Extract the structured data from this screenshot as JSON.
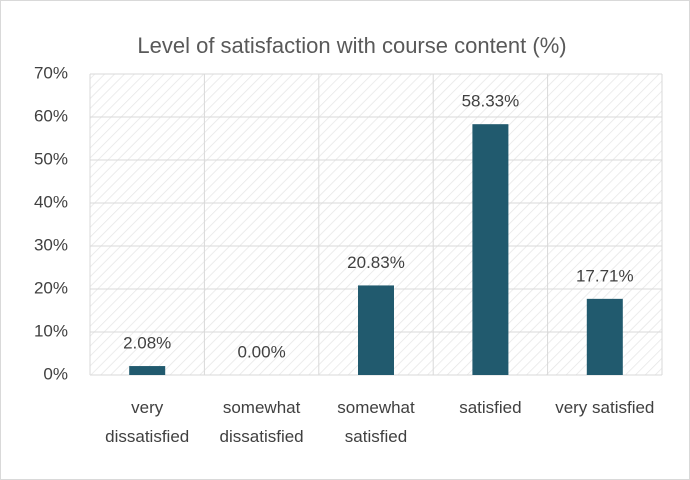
{
  "chart_data": {
    "type": "bar",
    "title": "Level of satisfaction with course content (%)",
    "categories": [
      "very dissatisfied",
      "somewhat dissatisfied",
      "somewhat satisfied",
      "satisfied",
      "very satisfied"
    ],
    "values": [
      2.08,
      0,
      20.83,
      58.33,
      17.71
    ],
    "value_labels": [
      "2.08%",
      "0.00%",
      "20.83%",
      "58.33%",
      "17.71%"
    ],
    "color": "#215a6e",
    "ylim": [
      0,
      70
    ],
    "yticks": [
      {
        "value": 0,
        "label": "0%"
      },
      {
        "value": 10,
        "label": "10%"
      },
      {
        "value": 20,
        "label": "20%"
      },
      {
        "value": 30,
        "label": "30%"
      },
      {
        "value": 40,
        "label": "40%"
      },
      {
        "value": 50,
        "label": "50%"
      },
      {
        "value": 60,
        "label": "60%"
      },
      {
        "value": 70,
        "label": "70%"
      }
    ],
    "grid": true
  }
}
